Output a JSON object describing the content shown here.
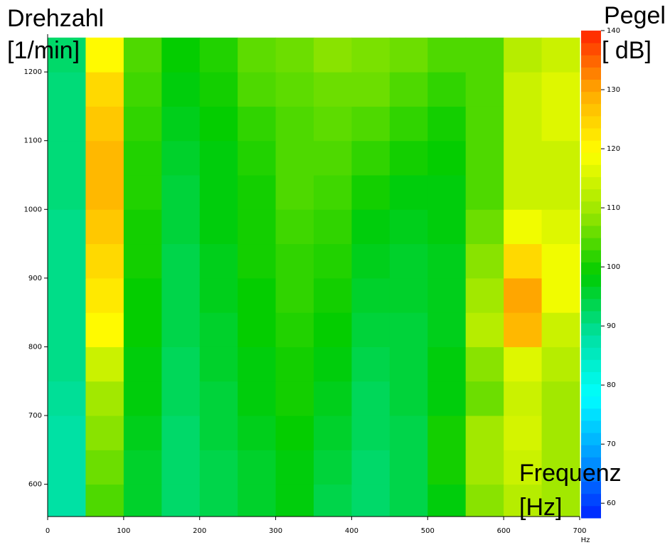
{
  "chart_data": {
    "type": "heatmap",
    "y_label_lines": [
      "Drehzahl",
      "[1/min]"
    ],
    "colorbar_label_lines": [
      "Pegel",
      "[ dB]"
    ],
    "x_label_lines": [
      "Frequenz",
      "[Hz]"
    ],
    "x_unit": "Hz",
    "x_bins": [
      0,
      50,
      100,
      150,
      200,
      250,
      300,
      350,
      400,
      450,
      500,
      550,
      600,
      650,
      700
    ],
    "y_bins": [
      550,
      600,
      650,
      700,
      750,
      800,
      850,
      900,
      950,
      1000,
      1050,
      1100,
      1150,
      1200,
      1250
    ],
    "z": [
      [
        88,
        104,
        96,
        92,
        94,
        96,
        98,
        94,
        92,
        94,
        98,
        108,
        112,
        110
      ],
      [
        88,
        106,
        96,
        92,
        94,
        96,
        98,
        95,
        92,
        94,
        100,
        110,
        114,
        110
      ],
      [
        88,
        108,
        97,
        92,
        95,
        97,
        99,
        96,
        93,
        94,
        100,
        110,
        115,
        110
      ],
      [
        89,
        110,
        98,
        93,
        95,
        98,
        100,
        97,
        93,
        95,
        98,
        106,
        114,
        110
      ],
      [
        90,
        114,
        98,
        93,
        96,
        98,
        100,
        98,
        94,
        95,
        98,
        108,
        116,
        112
      ],
      [
        90,
        120,
        99,
        94,
        96,
        99,
        101,
        99,
        95,
        95,
        97,
        112,
        128,
        114
      ],
      [
        90,
        122,
        99,
        94,
        97,
        99,
        102,
        100,
        96,
        96,
        97,
        110,
        130,
        118
      ],
      [
        90,
        124,
        100,
        94,
        97,
        100,
        102,
        101,
        97,
        96,
        97,
        108,
        124,
        118
      ],
      [
        90,
        126,
        100,
        95,
        98,
        100,
        103,
        102,
        98,
        97,
        98,
        106,
        118,
        116
      ],
      [
        91,
        128,
        101,
        95,
        98,
        100,
        104,
        103,
        100,
        98,
        98,
        104,
        114,
        114
      ],
      [
        91,
        128,
        101,
        96,
        98,
        101,
        104,
        104,
        102,
        100,
        99,
        104,
        114,
        114
      ],
      [
        91,
        126,
        102,
        97,
        99,
        102,
        104,
        105,
        104,
        102,
        100,
        104,
        114,
        116
      ],
      [
        91,
        124,
        103,
        98,
        100,
        104,
        105,
        106,
        106,
        104,
        102,
        104,
        114,
        116
      ],
      [
        92,
        120,
        104,
        99,
        101,
        105,
        106,
        108,
        107,
        106,
        104,
        104,
        112,
        114
      ]
    ],
    "xlim": [
      0,
      700
    ],
    "ylim": [
      553,
      1255
    ],
    "xticks": [
      0,
      100,
      200,
      300,
      400,
      500,
      600,
      700
    ],
    "yticks": [
      600,
      700,
      800,
      900,
      1000,
      1100,
      1200
    ],
    "clim": [
      57.5,
      140
    ],
    "cticks": [
      60,
      70,
      80,
      90,
      100,
      110,
      120,
      130,
      140
    ],
    "colorscale": [
      "#0022ff",
      "#0099ff",
      "#00ffff",
      "#00e0a0",
      "#00cc00",
      "#99e600",
      "#ffff00",
      "#ffaa00",
      "#ff2200"
    ]
  }
}
